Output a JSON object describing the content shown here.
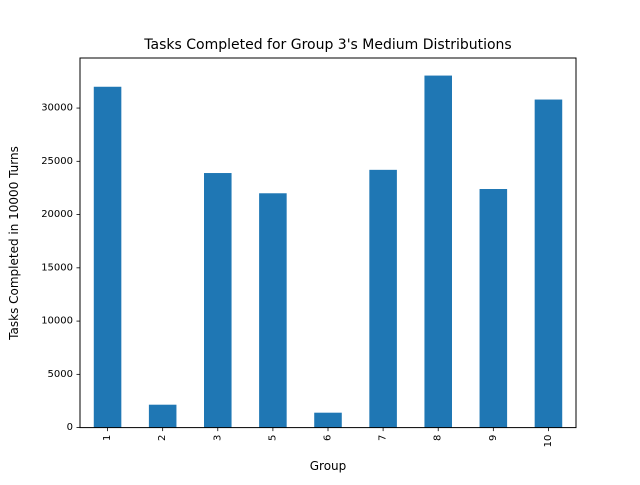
{
  "chart_data": {
    "type": "bar",
    "title": "Tasks Completed for Group 3's Medium Distributions",
    "xlabel": "Group",
    "ylabel": "Tasks Completed in 10000 Turns",
    "categories": [
      "1",
      "2",
      "3",
      "5",
      "6",
      "7",
      "8",
      "9",
      "10"
    ],
    "values": [
      32000,
      2150,
      23900,
      22000,
      1400,
      24200,
      33050,
      22400,
      30800
    ],
    "ylim": [
      0,
      34700
    ],
    "yticks": [
      0,
      5000,
      10000,
      15000,
      20000,
      25000,
      30000
    ],
    "ytick_labels": [
      "0",
      "5000",
      "10000",
      "15000",
      "20000",
      "25000",
      "30000"
    ],
    "bar_color": "#1f77b4",
    "grid": false,
    "legend": "none"
  }
}
